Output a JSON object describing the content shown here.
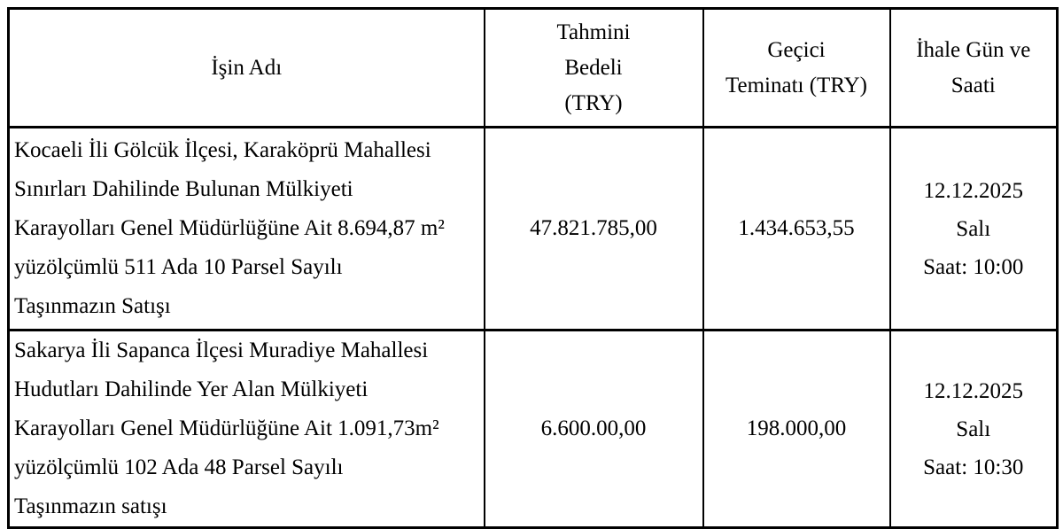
{
  "colors": {
    "background": "#ffffff",
    "text": "#000000",
    "border": "#000000"
  },
  "table": {
    "header": {
      "isin_adi": "İşin Adı",
      "tahmini_bedeli_lines": [
        "Tahmini",
        "Bedeli",
        "(TRY)"
      ],
      "gecici_teminati_lines": [
        "Geçici",
        "Teminatı (TRY)"
      ],
      "ihale_lines": [
        "İhale Gün ve",
        "Saati"
      ]
    },
    "rows": [
      {
        "isin_adi_lines": [
          "Kocaeli İli Gölcük İlçesi, Karaköprü Mahallesi",
          "Sınırları Dahilinde Bulunan Mülkiyeti",
          "Karayolları Genel Müdürlüğüne Ait 8.694,87 m²",
          "yüzölçümlü 511 Ada 10 Parsel Sayılı",
          "Taşınmazın Satışı"
        ],
        "tahmini_bedeli": "47.821.785,00",
        "gecici_teminati": "1.434.653,55",
        "ihale_lines": [
          "12.12.2025",
          "Salı",
          "Saat: 10:00"
        ]
      },
      {
        "isin_adi_lines": [
          "Sakarya İli Sapanca İlçesi Muradiye Mahallesi",
          "Hudutları Dahilinde Yer Alan Mülkiyeti",
          "Karayolları Genel Müdürlüğüne Ait 1.091,73m²",
          "yüzölçümlü 102 Ada 48 Parsel Sayılı",
          "Taşınmazın satışı"
        ],
        "tahmini_bedeli": "6.600.00,00",
        "gecici_teminati": "198.000,00",
        "ihale_lines": [
          "12.12.2025",
          "Salı",
          "Saat: 10:30"
        ]
      }
    ]
  }
}
